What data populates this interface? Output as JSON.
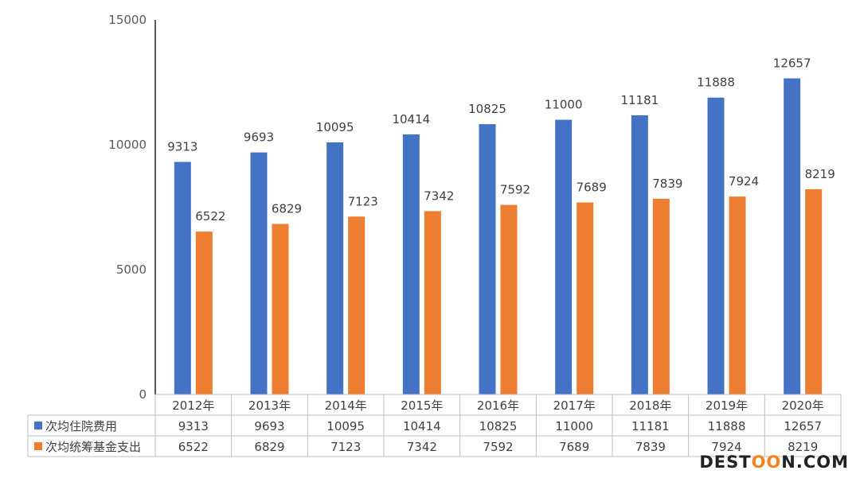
{
  "chart_data": {
    "type": "bar",
    "title": "",
    "xlabel": "",
    "ylabel": "",
    "ylim": [
      0,
      15000
    ],
    "yticks": [
      0,
      5000,
      10000,
      15000
    ],
    "categories": [
      "2012年",
      "2013年",
      "2014年",
      "2015年",
      "2016年",
      "2017年",
      "2018年",
      "2019年",
      "2020年"
    ],
    "series": [
      {
        "name": "次均住院费用",
        "color": "#4472c4",
        "values": [
          9313,
          9693,
          10095,
          10414,
          10825,
          11000,
          11181,
          11888,
          12657
        ]
      },
      {
        "name": "次均统筹基金支出",
        "color": "#ed7d31",
        "values": [
          6522,
          6829,
          7123,
          7342,
          7592,
          7689,
          7839,
          7924,
          8219
        ]
      }
    ],
    "legend": "data-table",
    "grid": false
  },
  "watermark": {
    "part1": "DEST",
    "part2": "OO",
    "part3": "N.COM"
  }
}
